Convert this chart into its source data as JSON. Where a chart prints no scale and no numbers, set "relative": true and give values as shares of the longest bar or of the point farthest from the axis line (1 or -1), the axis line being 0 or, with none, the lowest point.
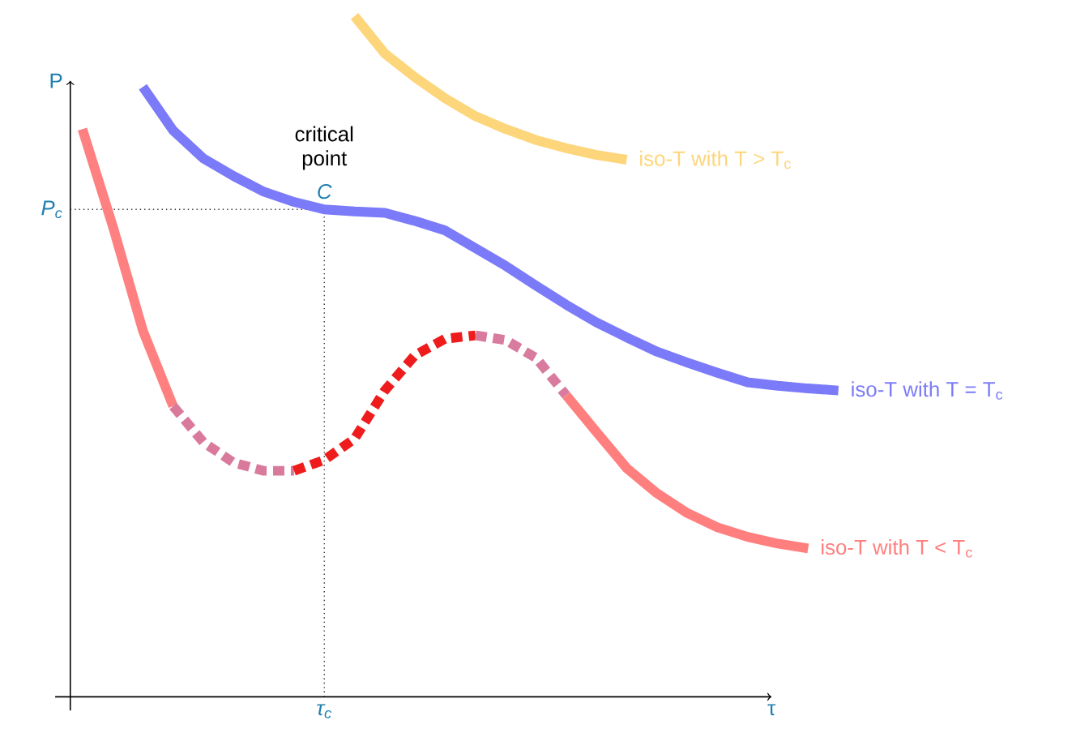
{
  "chart_data": {
    "type": "line",
    "relative": true,
    "xlabel": "τ",
    "ylabel": "P",
    "categories": [
      null,
      null,
      null,
      null,
      null,
      null,
      null,
      null,
      null,
      null,
      null,
      null,
      null,
      null,
      null,
      null,
      null,
      null,
      null,
      null,
      null,
      null,
      null,
      null,
      null,
      null
    ],
    "annotations": [
      {
        "text": "critical point",
        "y": 0.716
      },
      {
        "text": "C",
        "y": 0.716
      },
      "τ$_{c}$"
    ],
    "ref_lines": [
      {
        "axis": "y",
        "value": 0.716,
        "label": "P$_{c}$",
        "line_style": "dotted",
        "color": "#333333"
      }
    ],
    "series": [
      {
        "name": "iso-T with T > T$_{c}$",
        "color": "#fdd57a",
        "line_style": "solid",
        "values": [
          null,
          null,
          null,
          null,
          null,
          null,
          null,
          null,
          null,
          1.0,
          0.945,
          0.91,
          0.879,
          0.853,
          0.834,
          0.818,
          0.806,
          0.796,
          0.789,
          null,
          null,
          null,
          null,
          null,
          null,
          null
        ]
      },
      {
        "name": "iso-T with T = T$_{c}$",
        "color": "#7b7bf9",
        "line_style": "solid",
        "values": [
          null,
          null,
          0.896,
          0.832,
          0.791,
          0.765,
          0.742,
          0.727,
          0.716,
          0.713,
          0.711,
          0.699,
          0.685,
          0.659,
          0.633,
          0.604,
          0.576,
          0.55,
          0.528,
          0.507,
          0.491,
          0.476,
          0.462,
          0.457,
          0.453,
          0.45
        ]
      },
      {
        "color": "#fe8080",
        "line_style": "solid",
        "values": [
          0.834,
          0.692,
          0.538,
          0.427,
          null,
          null,
          null,
          null,
          null,
          null,
          null,
          null,
          null,
          null,
          null,
          null,
          null,
          null,
          null,
          null,
          null,
          null,
          null,
          null,
          null,
          null
        ]
      },
      {
        "color": "#d97a9d",
        "line_style": "dashed",
        "values": [
          null,
          null,
          null,
          0.427,
          0.374,
          0.344,
          0.332,
          0.332,
          null,
          null,
          null,
          null,
          null,
          null,
          null,
          null,
          null,
          null,
          null,
          null,
          null,
          null,
          null,
          null,
          null,
          null
        ]
      },
      {
        "color": "#ee1c1c",
        "line_style": "dashed",
        "values": [
          null,
          null,
          null,
          null,
          null,
          null,
          null,
          0.332,
          0.348,
          0.379,
          0.45,
          0.502,
          0.526,
          0.531,
          null,
          null,
          null,
          null,
          null,
          null,
          null,
          null,
          null,
          null,
          null,
          null
        ]
      },
      {
        "color": "#d87b9e",
        "line_style": "dashed",
        "values": [
          null,
          null,
          null,
          null,
          null,
          null,
          null,
          null,
          null,
          null,
          null,
          null,
          null,
          0.531,
          0.524,
          0.498,
          0.443,
          null,
          null,
          null,
          null,
          null,
          null,
          null,
          null,
          null
        ]
      },
      {
        "name": "iso-T with T < T$_{c}$",
        "color": "#ff7f7f",
        "line_style": "solid",
        "values": [
          null,
          null,
          null,
          null,
          null,
          null,
          null,
          null,
          null,
          null,
          null,
          null,
          null,
          null,
          null,
          null,
          0.443,
          0.389,
          0.336,
          0.299,
          0.27,
          0.249,
          0.235,
          0.225,
          0.218,
          null
        ]
      }
    ]
  }
}
